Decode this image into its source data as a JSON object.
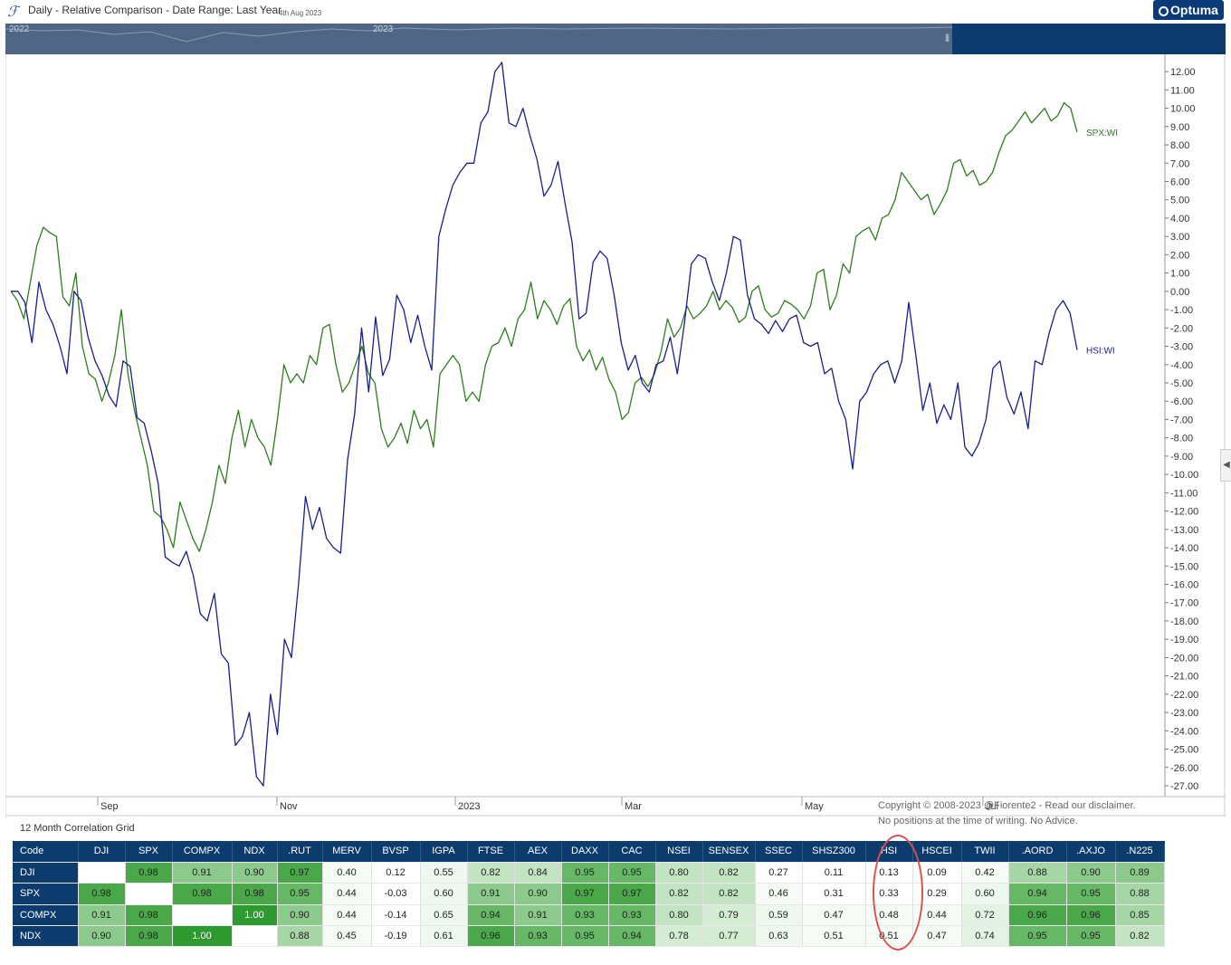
{
  "header": {
    "title": "Daily - Relative Comparison - Date Range: Last Year",
    "date": "4th Aug 2023",
    "brand": "Optuma"
  },
  "navigator": {
    "years": [
      "2022",
      "2023"
    ]
  },
  "chart_data": {
    "type": "line",
    "x_labels": [
      "Sep",
      "Nov",
      "2023",
      "Mar",
      "May",
      "Jul"
    ],
    "ylim": [
      -27,
      12.5
    ],
    "y_ticks": [
      "12.00",
      "11.00",
      "10.00",
      "9.00",
      "8.00",
      "7.00",
      "6.00",
      "5.00",
      "4.00",
      "3.00",
      "2.00",
      "1.00",
      "0.00",
      "-1.00",
      "-2.00",
      "-3.00",
      "-4.00",
      "-5.00",
      "-6.00",
      "-7.00",
      "-8.00",
      "-9.00",
      "-10.00",
      "-11.00",
      "-12.00",
      "-13.00",
      "-14.00",
      "-15.00",
      "-16.00",
      "-17.00",
      "-18.00",
      "-19.00",
      "-20.00",
      "-21.00",
      "-22.00",
      "-23.00",
      "-24.00",
      "-25.00",
      "-26.00",
      "-27.00"
    ],
    "series": [
      {
        "name": "SPX:WI",
        "color": "#2e7d1f",
        "values": [
          0.0,
          -0.5,
          -1.5,
          0.5,
          2.5,
          3.5,
          3.2,
          3.0,
          -0.3,
          -0.8,
          1.0,
          -3.0,
          -4.5,
          -4.8,
          -6.0,
          -5.0,
          -3.5,
          -1.0,
          -4.5,
          -6.5,
          -8.0,
          -9.5,
          -12.0,
          -12.3,
          -13.0,
          -14.0,
          -11.5,
          -12.5,
          -13.5,
          -14.2,
          -13.0,
          -11.5,
          -9.5,
          -10.5,
          -8.0,
          -6.5,
          -8.5,
          -7.0,
          -8.0,
          -8.5,
          -9.5,
          -7.0,
          -4.0,
          -5.0,
          -4.5,
          -5.0,
          -3.5,
          -4.0,
          -2.0,
          -1.8,
          -4.0,
          -5.5,
          -5.0,
          -4.0,
          -3.0,
          -4.5,
          -5.0,
          -7.5,
          -8.5,
          -8.0,
          -7.2,
          -8.3,
          -6.5,
          -7.5,
          -7.0,
          -8.5,
          -4.5,
          -4.0,
          -3.5,
          -4.0,
          -6.0,
          -5.5,
          -6.0,
          -4.0,
          -3.0,
          -2.8,
          -2.0,
          -3.0,
          -1.5,
          -1.0,
          0.5,
          -1.5,
          -0.5,
          -1.0,
          -1.8,
          -0.8,
          -0.4,
          -3.0,
          -3.8,
          -3.2,
          -4.3,
          -3.6,
          -4.8,
          -5.5,
          -7.0,
          -6.6,
          -5.0,
          -4.7,
          -5.2,
          -4.5,
          -3.3,
          -1.5,
          -2.5,
          -2.0,
          -0.8,
          -1.5,
          -1.2,
          -0.8,
          0.0,
          -1.0,
          -0.5,
          -0.9,
          -1.7,
          -1.4,
          0.0,
          0.3,
          -1.0,
          -1.4,
          -1.2,
          -0.5,
          -0.7,
          -1.0,
          -1.5,
          -0.8,
          1.0,
          1.2,
          -1.0,
          -0.2,
          1.5,
          1.0,
          3.0,
          3.3,
          3.5,
          2.8,
          4.0,
          4.2,
          5.0,
          6.5,
          6.0,
          5.5,
          5.0,
          5.3,
          4.2,
          4.8,
          5.5,
          7.0,
          7.2,
          6.3,
          6.6,
          5.8,
          6.0,
          6.5,
          7.6,
          8.5,
          8.8,
          9.3,
          9.8,
          9.2,
          9.6,
          10.0,
          9.3,
          9.6,
          10.3,
          10.0,
          8.7
        ]
      },
      {
        "name": "HSI:WI",
        "color": "#1a1e8c",
        "values": [
          0.0,
          0.0,
          -0.6,
          -2.8,
          0.5,
          -1.0,
          -1.8,
          -3.0,
          -4.5,
          0.0,
          -0.5,
          -2.5,
          -3.8,
          -4.6,
          -5.7,
          -6.3,
          -3.8,
          -4.1,
          -6.9,
          -7.2,
          -8.7,
          -10.5,
          -14.5,
          -14.8,
          -15.0,
          -14.2,
          -15.5,
          -17.6,
          -18.0,
          -16.5,
          -19.8,
          -20.3,
          -24.8,
          -24.3,
          -23.0,
          -26.5,
          -27.0,
          -22.0,
          -24.2,
          -19.0,
          -20.0,
          -16.0,
          -11.2,
          -13.0,
          -11.8,
          -13.5,
          -14.0,
          -14.3,
          -9.2,
          -6.7,
          -2.0,
          -5.5,
          -1.4,
          -4.6,
          -3.7,
          -0.2,
          -1.0,
          -2.8,
          -1.3,
          -3.0,
          -4.3,
          3.0,
          4.5,
          5.8,
          6.5,
          7.0,
          7.0,
          9.2,
          9.8,
          12.0,
          12.5,
          9.2,
          9.0,
          10.0,
          8.5,
          7.2,
          5.2,
          5.8,
          7.1,
          4.8,
          2.7,
          -1.5,
          -1.2,
          1.6,
          2.2,
          1.8,
          -0.2,
          -2.8,
          -4.3,
          -3.5,
          -5.0,
          -5.5,
          -4.0,
          -3.8,
          -2.5,
          -4.5,
          -1.8,
          1.5,
          2.0,
          1.8,
          0.5,
          -0.5,
          1.0,
          3.0,
          2.8,
          -0.2,
          -1.5,
          -1.8,
          -2.3,
          -1.6,
          -2.2,
          -1.5,
          -1.3,
          -2.8,
          -3.0,
          -2.8,
          -4.5,
          -4.2,
          -6.0,
          -7.0,
          -9.7,
          -6.0,
          -5.5,
          -4.5,
          -4.0,
          -3.8,
          -5.0,
          -3.8,
          -0.6,
          -3.5,
          -6.5,
          -5.0,
          -7.2,
          -6.2,
          -7.0,
          -5.0,
          -8.5,
          -9.0,
          -8.3,
          -7.0,
          -4.2,
          -3.8,
          -5.8,
          -6.7,
          -5.5,
          -7.5,
          -3.8,
          -4.0,
          -2.3,
          -1.0,
          -0.5,
          -1.2,
          -3.2
        ]
      }
    ]
  },
  "copyright": {
    "line1": "Copyright © 2008-2023 @Fiorente2 -  Read our disclaimer.",
    "line2": "No positions at the time of writing. No Advice."
  },
  "grid": {
    "title": "12 Month Correlation Grid",
    "code_header": "Code",
    "columns": [
      "DJI",
      "SPX",
      "COMPX",
      "NDX",
      ".RUT",
      "MERV",
      "BVSP",
      "IGPA",
      "FTSE",
      "AEX",
      "DAXX",
      "CAC",
      "NSEI",
      "SENSEX",
      "SSEC",
      "SHSZ300",
      "HSI",
      "HSCEI",
      "TWII",
      ".AORD",
      ".AXJO",
      ".N225"
    ],
    "rows": [
      {
        "code": "DJI",
        "values": [
          "",
          "0.98",
          "0.91",
          "0.90",
          "0.97",
          "0.40",
          "0.12",
          "0.55",
          "0.82",
          "0.84",
          "0.95",
          "0.95",
          "0.80",
          "0.82",
          "0.27",
          "0.11",
          "0.13",
          "0.09",
          "0.42",
          "0.88",
          "0.90",
          "0.89"
        ]
      },
      {
        "code": "SPX",
        "values": [
          "0.98",
          "",
          "0.98",
          "0.98",
          "0.95",
          "0.44",
          "-0.03",
          "0.60",
          "0.91",
          "0.90",
          "0.97",
          "0.97",
          "0.82",
          "0.82",
          "0.46",
          "0.31",
          "0.33",
          "0.29",
          "0.60",
          "0.94",
          "0.95",
          "0.88"
        ]
      },
      {
        "code": "COMPX",
        "values": [
          "0.91",
          "0.98",
          "",
          "1.00",
          "0.90",
          "0.44",
          "-0.14",
          "0.65",
          "0.94",
          "0.91",
          "0.93",
          "0.93",
          "0.80",
          "0.79",
          "0.59",
          "0.47",
          "0.48",
          "0.44",
          "0.72",
          "0.96",
          "0.96",
          "0.85"
        ]
      },
      {
        "code": "NDX",
        "values": [
          "0.90",
          "0.98",
          "1.00",
          "",
          "0.88",
          "0.45",
          "-0.19",
          "0.61",
          "0.96",
          "0.93",
          "0.95",
          "0.94",
          "0.78",
          "0.77",
          "0.63",
          "0.51",
          "0.51",
          "0.47",
          "0.74",
          "0.95",
          "0.95",
          "0.82"
        ]
      }
    ]
  }
}
